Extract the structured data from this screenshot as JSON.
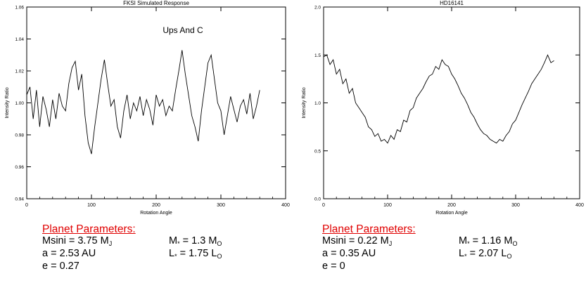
{
  "chart_data": [
    {
      "type": "line",
      "title": "FKSI Simulated Response",
      "annotation": "Ups And C",
      "xlabel": "Rotation Angle",
      "ylabel": "Intensity Ratio",
      "xlim": [
        0,
        400
      ],
      "ylim": [
        0.94,
        1.06
      ],
      "xticks": [
        0,
        100,
        200,
        300,
        400
      ],
      "yticks": [
        0.94,
        0.96,
        0.98,
        1.0,
        1.02,
        1.04,
        1.06
      ],
      "ytick_labels": [
        "0.94",
        "0.96",
        "0.98",
        "1.00",
        "1.02",
        "1.04",
        "1.06"
      ],
      "xtick_labels": [
        "0",
        "100",
        "200",
        "300",
        "400"
      ],
      "x": [
        0,
        5,
        10,
        15,
        20,
        25,
        30,
        35,
        40,
        45,
        50,
        55,
        60,
        65,
        70,
        75,
        80,
        85,
        90,
        95,
        100,
        105,
        110,
        115,
        120,
        125,
        130,
        135,
        140,
        145,
        150,
        155,
        160,
        165,
        170,
        175,
        180,
        185,
        190,
        195,
        200,
        205,
        210,
        215,
        220,
        225,
        230,
        235,
        240,
        245,
        250,
        255,
        260,
        265,
        270,
        275,
        280,
        285,
        290,
        295,
        300,
        305,
        310,
        315,
        320,
        325,
        330,
        335,
        340,
        345,
        350,
        355,
        360
      ],
      "y": [
        1.005,
        1.01,
        0.99,
        1.008,
        0.985,
        1.004,
        0.996,
        0.985,
        1.002,
        0.99,
        1.006,
        0.998,
        0.995,
        1.012,
        1.022,
        1.026,
        1.008,
        1.018,
        0.992,
        0.975,
        0.968,
        0.985,
        1.0,
        1.015,
        1.027,
        1.012,
        0.998,
        1.002,
        0.985,
        0.978,
        0.995,
        1.005,
        0.99,
        1.0,
        0.995,
        1.004,
        0.992,
        1.002,
        0.996,
        0.986,
        1.005,
        0.998,
        1.002,
        0.992,
        0.998,
        0.995,
        1.008,
        1.02,
        1.033,
        1.018,
        1.005,
        0.992,
        0.985,
        0.976,
        0.995,
        1.01,
        1.025,
        1.03,
        1.015,
        1.0,
        0.995,
        0.98,
        0.992,
        1.004,
        0.996,
        0.988,
        0.998,
        1.002,
        0.993,
        1.006,
        0.99,
        0.998,
        1.008
      ]
    },
    {
      "type": "line",
      "title": "HD16141",
      "xlabel": "Rotation Angle",
      "ylabel": "Intensity Ratio",
      "xlim": [
        0,
        400
      ],
      "ylim": [
        0.0,
        2.0
      ],
      "xticks": [
        0,
        100,
        200,
        300,
        400
      ],
      "yticks": [
        0.0,
        0.5,
        1.0,
        1.5,
        2.0
      ],
      "ytick_labels": [
        "0.0",
        "0.5",
        "1.0",
        "1.5",
        "2.0"
      ],
      "xtick_labels": [
        "0",
        "100",
        "200",
        "300",
        "400"
      ],
      "x": [
        0,
        5,
        10,
        15,
        20,
        25,
        30,
        35,
        40,
        45,
        50,
        55,
        60,
        65,
        70,
        75,
        80,
        85,
        90,
        95,
        100,
        105,
        110,
        115,
        120,
        125,
        130,
        135,
        140,
        145,
        150,
        155,
        160,
        165,
        170,
        175,
        180,
        185,
        190,
        195,
        200,
        205,
        210,
        215,
        220,
        225,
        230,
        235,
        240,
        245,
        250,
        255,
        260,
        265,
        270,
        275,
        280,
        285,
        290,
        295,
        300,
        305,
        310,
        315,
        320,
        325,
        330,
        335,
        340,
        345,
        350,
        355,
        360
      ],
      "y": [
        1.48,
        1.5,
        1.4,
        1.45,
        1.3,
        1.35,
        1.2,
        1.25,
        1.1,
        1.15,
        1.0,
        0.95,
        0.9,
        0.85,
        0.75,
        0.72,
        0.65,
        0.68,
        0.6,
        0.62,
        0.58,
        0.66,
        0.62,
        0.72,
        0.7,
        0.82,
        0.8,
        0.92,
        0.95,
        1.05,
        1.1,
        1.15,
        1.22,
        1.28,
        1.3,
        1.38,
        1.35,
        1.45,
        1.4,
        1.38,
        1.3,
        1.25,
        1.18,
        1.1,
        1.05,
        0.98,
        0.9,
        0.85,
        0.78,
        0.72,
        0.68,
        0.66,
        0.62,
        0.6,
        0.58,
        0.62,
        0.6,
        0.66,
        0.7,
        0.78,
        0.82,
        0.9,
        0.98,
        1.05,
        1.12,
        1.2,
        1.25,
        1.3,
        1.35,
        1.42,
        1.5,
        1.42,
        1.44
      ]
    }
  ],
  "params": [
    {
      "heading": "Planet Parameters:",
      "msini_label": "Msini = 3.75 M",
      "msini_sub": "J",
      "a": "a = 2.53 AU",
      "e": "e = 0.27",
      "mstar_label": "M",
      "mstar_sub_star": "*",
      "mstar_val": " = 1.3 M",
      "mstar_sub": "O",
      "lstar_label": "L",
      "lstar_sub_star": "*",
      "lstar_val": " = 1.75 L",
      "lstar_sub": "O"
    },
    {
      "heading": "Planet Parameters:",
      "msini_label": "Msini = 0.22 M",
      "msini_sub": "J",
      "a": "a = 0.35 AU",
      "e": "e = 0",
      "mstar_label": "M",
      "mstar_sub_star": "*",
      "mstar_val": " = 1.16 M",
      "mstar_sub": "O",
      "lstar_label": "L",
      "lstar_sub_star": "*",
      "lstar_val": " = 2.07 L",
      "lstar_sub": "O"
    }
  ]
}
